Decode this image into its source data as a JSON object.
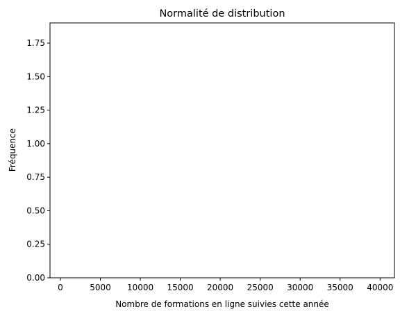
{
  "chart_data": {
    "type": "bar",
    "title": "Normalité de distribution",
    "xlabel": "Nombre de formations en ligne suivies cette année",
    "ylabel": "Fréquence",
    "xlim": [
      -1300,
      41800
    ],
    "ylim": [
      0,
      1.9
    ],
    "xticks": [
      0,
      5000,
      10000,
      15000,
      20000,
      25000,
      30000,
      35000,
      40000
    ],
    "xtick_labels": [
      "0",
      "5000",
      "10000",
      "15000",
      "20000",
      "25000",
      "30000",
      "35000",
      "40000"
    ],
    "yticks": [
      0,
      0.25,
      0.5,
      0.75,
      1.0,
      1.25,
      1.5,
      1.75
    ],
    "ytick_labels": [
      "0.00",
      "0.25",
      "0.50",
      "0.75",
      "1.00",
      "1.25",
      "1.50",
      "1.75"
    ],
    "grid": false,
    "series": [
      {
        "values": []
      }
    ],
    "colors": {
      "axis": "#000000",
      "background": "#ffffff"
    }
  }
}
